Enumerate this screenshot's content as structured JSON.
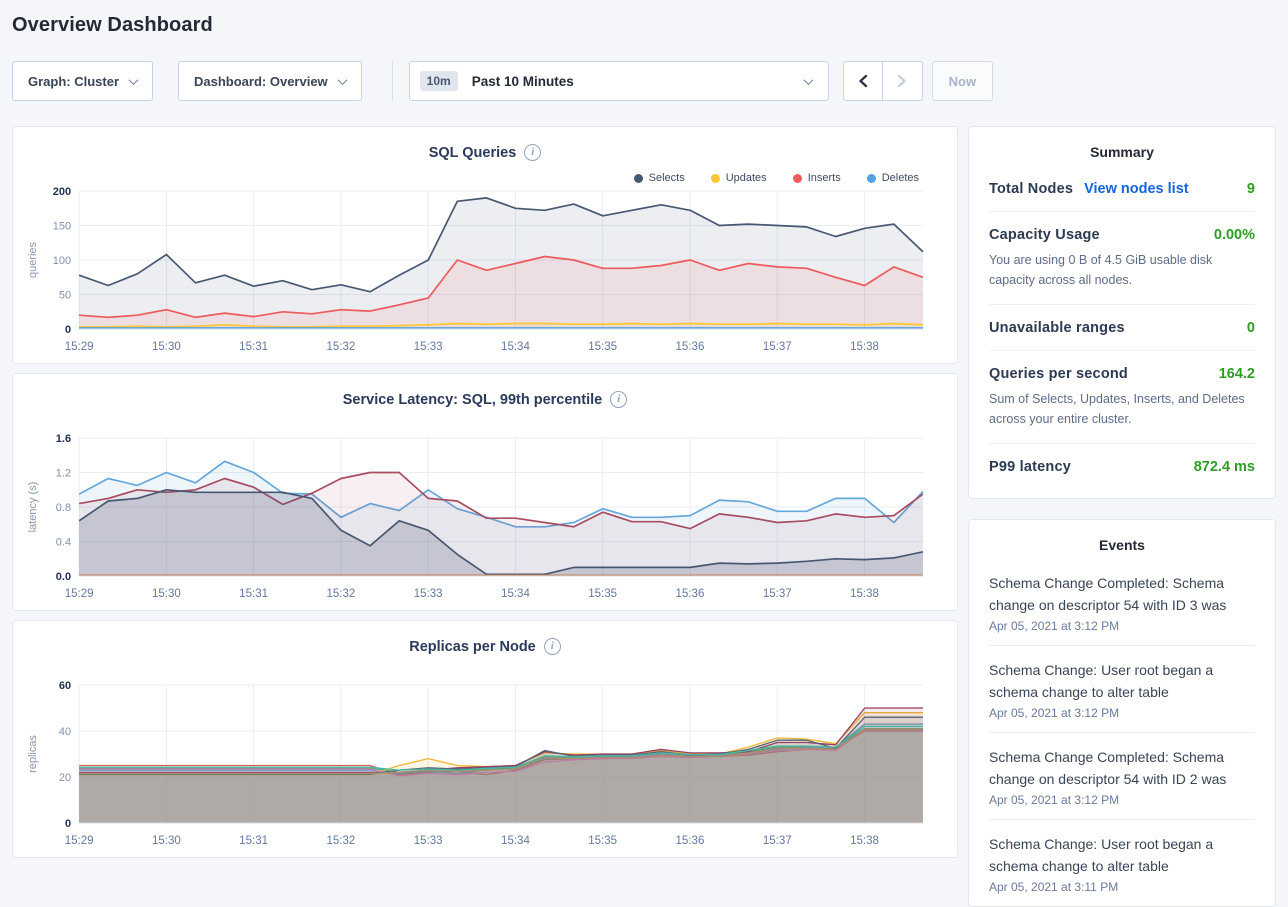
{
  "page_title": "Overview Dashboard",
  "icons": {
    "info": "i"
  },
  "colors": {
    "link": "#1464DC",
    "positive": "#2D9E23",
    "card_border": "#E3E8F0",
    "grid": "#E9EDF4"
  },
  "toolbar": {
    "graph_dropdown": "Graph: Cluster",
    "dashboard_dropdown": "Dashboard: Overview",
    "time_badge": "10m",
    "time_label": "Past 10 Minutes",
    "now_label": "Now"
  },
  "summary": {
    "title": "Summary",
    "rows": [
      {
        "label": "Total Nodes",
        "link": "View nodes list",
        "value": "9"
      },
      {
        "label": "Capacity Usage",
        "value": "0.00%",
        "subtext": "You are using 0 B of 4.5 GiB usable disk capacity across all nodes."
      },
      {
        "label": "Unavailable ranges",
        "value": "0"
      },
      {
        "label": "Queries per second",
        "value": "164.2",
        "subtext": "Sum of Selects, Updates, Inserts, and Deletes across your entire cluster."
      },
      {
        "label": "P99 latency",
        "value": "872.4 ms"
      }
    ]
  },
  "events": {
    "title": "Events",
    "items": [
      {
        "text": "Schema Change Completed: Schema change on descriptor 54 with ID 3 was",
        "timestamp": "Apr 05, 2021 at 3:12 PM"
      },
      {
        "text": "Schema Change: User root began a schema change to alter table",
        "timestamp": "Apr 05, 2021 at 3:12 PM"
      },
      {
        "text": "Schema Change Completed: Schema change on descriptor 54 with ID 2 was",
        "timestamp": "Apr 05, 2021 at 3:12 PM"
      },
      {
        "text": "Schema Change: User root began a schema change to alter table",
        "timestamp": "Apr 05, 2021 at 3:11 PM"
      }
    ]
  },
  "chart_data": [
    {
      "id": "sql-queries",
      "type": "area",
      "title": "SQL Queries",
      "ylabel": "queries",
      "ylim": [
        0,
        200
      ],
      "yticks": [
        0,
        50,
        100,
        150,
        200
      ],
      "xticks": [
        "15:29",
        "15:30",
        "15:31",
        "15:32",
        "15:33",
        "15:34",
        "15:35",
        "15:36",
        "15:37",
        "15:38"
      ],
      "x_total_minutes": 9.67,
      "grid": true,
      "legend_position": "top-right",
      "legend": [
        {
          "name": "Selects",
          "color": "#475872"
        },
        {
          "name": "Updates",
          "color": "#FFC733"
        },
        {
          "name": "Inserts",
          "color": "#EF5A5C"
        },
        {
          "name": "Deletes",
          "color": "#56A1E0"
        }
      ],
      "series": [
        {
          "name": "Selects",
          "color": "#475872",
          "fill_opacity": 0.1,
          "values": [
            78,
            63,
            80,
            108,
            67,
            78,
            62,
            70,
            57,
            64,
            54,
            78,
            100,
            185,
            190,
            175,
            172,
            181,
            164,
            172,
            180,
            172,
            150,
            152,
            150,
            148,
            134,
            146,
            152,
            112
          ]
        },
        {
          "name": "Inserts",
          "color": "#EF5A5C",
          "fill_opacity": 0.1,
          "values": [
            20,
            17,
            20,
            28,
            17,
            23,
            18,
            25,
            22,
            28,
            26,
            35,
            45,
            100,
            85,
            95,
            105,
            100,
            88,
            88,
            92,
            100,
            85,
            95,
            90,
            88,
            75,
            63,
            90,
            75
          ]
        },
        {
          "name": "Updates",
          "color": "#FFC733",
          "fill_opacity": 0.1,
          "values": [
            3,
            3,
            4,
            3,
            4,
            6,
            4,
            3,
            3,
            4,
            4,
            5,
            6,
            8,
            7,
            8,
            8,
            7,
            7,
            8,
            7,
            8,
            7,
            7,
            8,
            7,
            7,
            6,
            8,
            6
          ]
        },
        {
          "name": "Deletes",
          "color": "#56A1E0",
          "fill_opacity": 0.1,
          "values": [
            1.5,
            1.5,
            1.5,
            1.5,
            1.5,
            1.5,
            1.5,
            1.5,
            1.5,
            1.5,
            1.5,
            1.5,
            1.5,
            1.5,
            1.5,
            1.5,
            1.5,
            1.5,
            1.5,
            1.5,
            1.5,
            1.5,
            1.5,
            1.5,
            1.5,
            1.5,
            1.5,
            1.5,
            1.5,
            1.5
          ]
        }
      ]
    },
    {
      "id": "service-latency",
      "type": "area",
      "title": "Service Latency: SQL, 99th percentile",
      "ylabel": "latency (s)",
      "ylim": [
        0,
        1.6
      ],
      "yticks": [
        0.0,
        0.4,
        0.8,
        1.2,
        1.6
      ],
      "ytick_labels": [
        "0.0",
        "0.4",
        "0.8",
        "1.2",
        "1.6"
      ],
      "xticks": [
        "15:29",
        "15:30",
        "15:31",
        "15:32",
        "15:33",
        "15:34",
        "15:35",
        "15:36",
        "15:37",
        "15:38"
      ],
      "x_total_minutes": 9.67,
      "grid": true,
      "series": [
        {
          "name": "series-blue",
          "color": "#64A8DA",
          "fill_opacity": 0.1,
          "values": [
            0.95,
            1.13,
            1.05,
            1.2,
            1.08,
            1.33,
            1.2,
            0.96,
            0.95,
            0.68,
            0.84,
            0.76,
            1.0,
            0.78,
            0.68,
            0.57,
            0.57,
            0.62,
            0.78,
            0.68,
            0.68,
            0.7,
            0.88,
            0.86,
            0.75,
            0.75,
            0.9,
            0.9,
            0.62,
            0.98
          ]
        },
        {
          "name": "series-maroon",
          "color": "#A84C60",
          "fill_opacity": 0.09,
          "values": [
            0.84,
            0.9,
            1.0,
            0.97,
            1.0,
            1.13,
            1.03,
            0.83,
            0.96,
            1.13,
            1.2,
            1.2,
            0.9,
            0.87,
            0.67,
            0.67,
            0.62,
            0.57,
            0.74,
            0.63,
            0.63,
            0.55,
            0.72,
            0.68,
            0.62,
            0.64,
            0.72,
            0.68,
            0.7,
            0.95
          ]
        },
        {
          "name": "series-navy",
          "color": "#475872",
          "fill_opacity": 0.22,
          "values": [
            0.64,
            0.87,
            0.9,
            1.0,
            0.97,
            0.97,
            0.97,
            0.97,
            0.9,
            0.53,
            0.35,
            0.64,
            0.53,
            0.25,
            0.02,
            0.02,
            0.02,
            0.1,
            0.1,
            0.1,
            0.1,
            0.1,
            0.15,
            0.14,
            0.15,
            0.17,
            0.2,
            0.19,
            0.21,
            0.28
          ]
        },
        {
          "name": "series-orange-baseline",
          "color": "#C77D52",
          "fill_opacity": 0,
          "values": [
            0.008,
            0.008,
            0.008,
            0.008,
            0.008,
            0.008,
            0.008,
            0.008,
            0.008,
            0.008,
            0.008,
            0.008,
            0.008,
            0.008,
            0.008,
            0.008,
            0.008,
            0.008,
            0.008,
            0.008,
            0.008,
            0.008,
            0.008,
            0.008,
            0.008,
            0.008,
            0.008,
            0.008,
            0.008,
            0.008
          ]
        }
      ]
    },
    {
      "id": "replicas-per-node",
      "type": "area",
      "title": "Replicas per Node",
      "ylabel": "replicas",
      "ylim": [
        0,
        60
      ],
      "yticks": [
        0,
        20,
        40,
        60
      ],
      "xticks": [
        "15:29",
        "15:30",
        "15:31",
        "15:32",
        "15:33",
        "15:34",
        "15:35",
        "15:36",
        "15:37",
        "15:38"
      ],
      "x_total_minutes": 9.67,
      "grid": true,
      "series": [
        {
          "name": "node-1",
          "color": "#D95F57",
          "fill_opacity": 0.12,
          "values": [
            25,
            25,
            25,
            25,
            25,
            25,
            25,
            25,
            25,
            25,
            25,
            21,
            22,
            22.5,
            21,
            23,
            27.5,
            28,
            28,
            28.5,
            29,
            28.5,
            29,
            29.5,
            31,
            32,
            32.5,
            40,
            40,
            40
          ]
        },
        {
          "name": "node-2",
          "color": "#49A873",
          "fill_opacity": 0.12,
          "values": [
            24,
            24,
            24,
            24,
            24,
            24,
            24,
            24,
            24,
            24,
            24,
            22,
            23,
            23,
            23.5,
            24,
            29,
            28.5,
            29,
            29,
            30,
            29.5,
            29.5,
            31,
            33,
            33,
            33,
            41,
            41,
            41
          ]
        },
        {
          "name": "node-3",
          "color": "#5B9BD5",
          "fill_opacity": 0.12,
          "values": [
            23,
            23,
            23,
            23,
            23,
            23,
            23,
            23,
            23,
            23,
            23,
            21.5,
            22.5,
            21.5,
            23,
            23.5,
            28,
            28.5,
            29,
            29,
            30,
            29,
            29.5,
            30,
            32,
            33,
            33,
            43,
            43,
            43
          ]
        },
        {
          "name": "node-4",
          "color": "#F2B632",
          "fill_opacity": 0.12,
          "values": [
            21,
            21,
            21,
            21,
            21,
            21,
            21,
            21,
            21,
            21,
            21,
            25,
            28,
            25,
            24.5,
            25,
            30.5,
            30,
            30,
            30,
            31.5,
            30,
            30,
            33,
            37,
            36.5,
            34.5,
            48,
            48,
            48
          ]
        },
        {
          "name": "node-5",
          "color": "#9A3F62",
          "fill_opacity": 0.12,
          "values": [
            22,
            22,
            22,
            22,
            22,
            22,
            22,
            22,
            22,
            22,
            22,
            22,
            23,
            24,
            24.5,
            25,
            31,
            29.5,
            30,
            30,
            32,
            30.5,
            30.5,
            31,
            35,
            35,
            34,
            50,
            50,
            50
          ]
        },
        {
          "name": "node-6",
          "color": "#E272B0",
          "fill_opacity": 0.12,
          "values": [
            23.5,
            23.5,
            23.5,
            23.5,
            23.5,
            23.5,
            23.5,
            23.5,
            23.5,
            23.5,
            23.5,
            20.5,
            21.5,
            21,
            22,
            22.5,
            26.5,
            27.5,
            28,
            28,
            29,
            28.5,
            29,
            30,
            31.5,
            32,
            31.5,
            40.5,
            40.5,
            40.5
          ]
        },
        {
          "name": "node-7",
          "color": "#566378",
          "fill_opacity": 0.12,
          "values": [
            21.2,
            21.2,
            21.2,
            21.2,
            21.2,
            21.2,
            21.2,
            21.2,
            21.2,
            21.2,
            21.2,
            23,
            24,
            23.5,
            24,
            24.5,
            31.5,
            29,
            29.5,
            29.5,
            31,
            29.5,
            30,
            32,
            36,
            36,
            32.5,
            46,
            46,
            46
          ]
        },
        {
          "name": "node-8",
          "color": "#B98A63",
          "fill_opacity": 0.12,
          "values": [
            21.5,
            21.5,
            21.5,
            21.5,
            21.5,
            21.5,
            21.5,
            21.5,
            21.5,
            21.5,
            21.5,
            22,
            23,
            22.5,
            23,
            23.5,
            28.5,
            28,
            28.5,
            28.5,
            29.5,
            29,
            29,
            30.5,
            32.5,
            32.5,
            32,
            40.8,
            40.8,
            40.8
          ]
        },
        {
          "name": "node-9",
          "color": "#47B8A5",
          "fill_opacity": 0.12,
          "values": [
            24.2,
            24.2,
            24.2,
            24.2,
            24.2,
            24.2,
            24.2,
            24.2,
            24.2,
            24.2,
            24.2,
            23,
            23.5,
            23,
            23.8,
            24.2,
            29.2,
            28.8,
            29.2,
            29.2,
            30.5,
            29.8,
            29.8,
            31.5,
            33.5,
            33.5,
            33,
            42,
            42,
            42
          ]
        }
      ]
    }
  ]
}
